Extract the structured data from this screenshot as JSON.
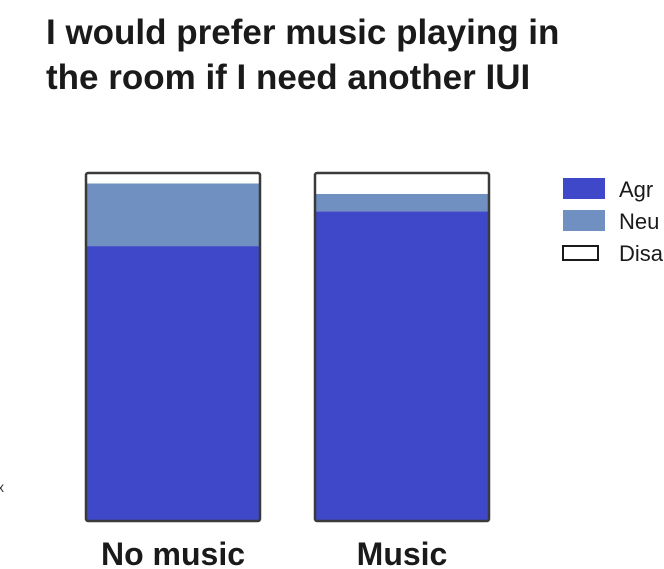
{
  "chart_data": {
    "type": "bar",
    "stacked": true,
    "normalized": true,
    "title_lines": [
      "I would prefer music playing in",
      "the room if I need another IUI"
    ],
    "categories": [
      "No music",
      "Music"
    ],
    "series": [
      {
        "name": "Agr",
        "color": "#3f48c8",
        "values": [
          0.79,
          0.89
        ]
      },
      {
        "name": "Neu",
        "color": "#6f90c0",
        "values": [
          0.18,
          0.05
        ]
      },
      {
        "name": "Disa",
        "color": "#ffffff",
        "values": [
          0.03,
          0.06
        ]
      }
    ],
    "ylim": [
      0,
      1
    ],
    "grid": false,
    "legend_position": "top-right",
    "stray_mark": "x"
  }
}
